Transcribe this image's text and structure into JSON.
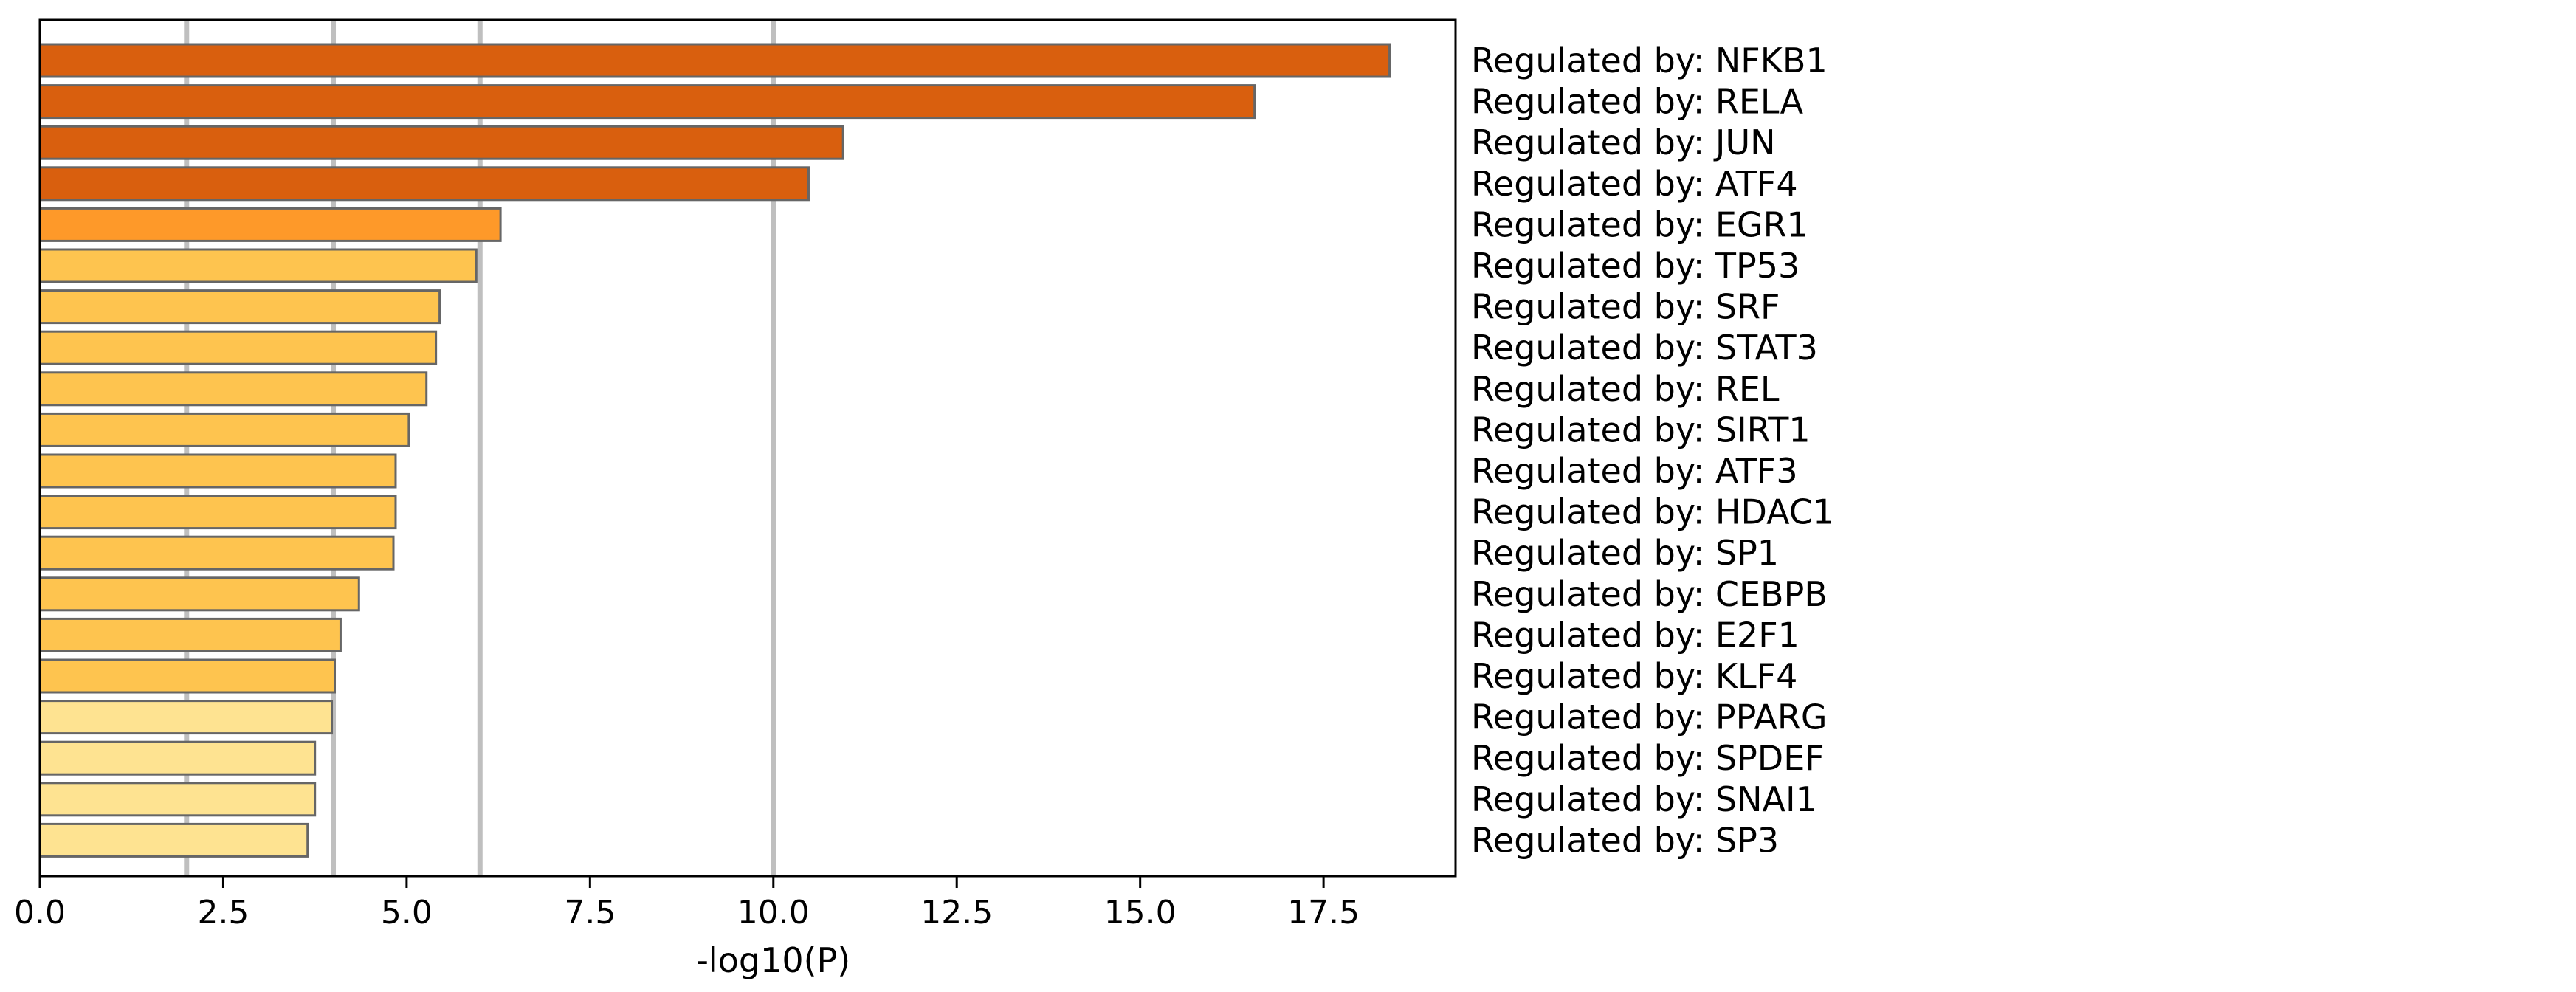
{
  "chart_data": {
    "type": "bar",
    "orientation": "horizontal",
    "title": "",
    "xlabel": "-log10(P)",
    "ylabel": "",
    "xlim": [
      0,
      19.3
    ],
    "xticks": [
      "0.0",
      "2.5",
      "5.0",
      "7.5",
      "10.0",
      "12.5",
      "15.0",
      "17.5"
    ],
    "reference_lines": [
      2,
      4,
      6,
      10
    ],
    "grid": false,
    "categories": [
      "Regulated by: NFKB1",
      "Regulated by: RELA",
      "Regulated by: JUN",
      "Regulated by: ATF4",
      "Regulated by: EGR1",
      "Regulated by: TP53",
      "Regulated by: SRF",
      "Regulated by: STAT3",
      "Regulated by: REL",
      "Regulated by: SIRT1",
      "Regulated by: ATF3",
      "Regulated by: HDAC1",
      "Regulated by: SP1",
      "Regulated by: CEBPB",
      "Regulated by: E2F1",
      "Regulated by: KLF4",
      "Regulated by: PPARG",
      "Regulated by: SPDEF",
      "Regulated by: SNAI1",
      "Regulated by: SP3"
    ],
    "values": [
      18.4,
      16.56,
      10.95,
      10.48,
      6.28,
      5.95,
      5.45,
      5.4,
      5.27,
      5.03,
      4.85,
      4.85,
      4.82,
      4.35,
      4.1,
      4.02,
      3.98,
      3.75,
      3.75,
      3.65
    ],
    "colors": {
      "bar_dark": "#D95F0E",
      "bar_mid": "#FE9929",
      "bar_light": "#FEC44F",
      "bar_pale": "#FEE391",
      "bar_edge": "#666666",
      "ref_line": "#BFBFBF",
      "axis": "#000000"
    }
  }
}
